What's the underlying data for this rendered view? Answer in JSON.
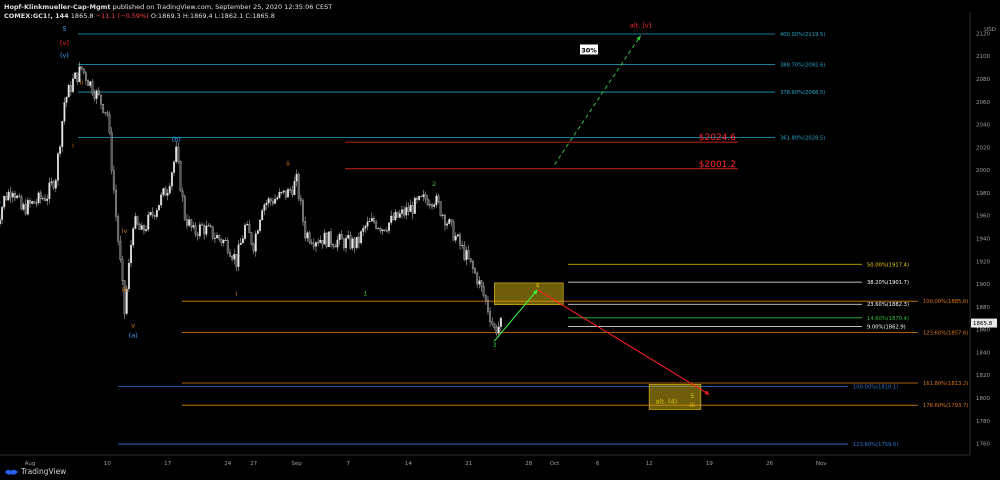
{
  "header": {
    "publisher": "Hopf-Klinkmueller-Cap-Mgmt",
    "published": "published on TradingView.com, September 25, 2020 12:35:06 CEST",
    "symbol": "COMEX:GC1!, 144",
    "last": "1865.8",
    "change": "−11.1 (−0.59%)",
    "o": "1869.3",
    "h": "1869.4",
    "l": "1862.1",
    "c": "1865.8"
  },
  "brand": "TradingView",
  "currency": "USD",
  "last_price_tag": "1865.8",
  "chart_data": {
    "type": "line",
    "title": "",
    "ylim": [
      1750,
      2130
    ],
    "y_ticks": [
      1760,
      1780,
      1800,
      1820,
      1840,
      1860,
      1880,
      1900,
      1920,
      1940,
      1960,
      1980,
      2000,
      2020,
      2040,
      2060,
      2080,
      2100,
      2120
    ],
    "x_ticks": [
      "Aug",
      "10",
      "17",
      "24",
      "27",
      "Sep",
      "7",
      "14",
      "21",
      "28",
      "Oct",
      "6",
      "12",
      "19",
      "26",
      "Nov"
    ],
    "price_path": [
      {
        "x": "Jul 28",
        "y": 1950
      },
      {
        "x": "Jul 29",
        "y": 1975
      },
      {
        "x": "Jul 30",
        "y": 1985
      },
      {
        "x": "Jul 31",
        "y": 1965
      },
      {
        "x": "Aug 3",
        "y": 1978
      },
      {
        "x": "Aug 4",
        "y": 1995
      },
      {
        "x": "Aug 5",
        "y": 2060
      },
      {
        "x": "Aug 6",
        "y": 2078
      },
      {
        "x": "Aug 7",
        "y": 2089
      },
      {
        "x": "Aug 10",
        "y": 2050
      },
      {
        "x": "Aug 11",
        "y": 1960
      },
      {
        "x": "Aug 12",
        "y": 1875
      },
      {
        "x": "Aug 13",
        "y": 1955
      },
      {
        "x": "Aug 14",
        "y": 1945
      },
      {
        "x": "Aug 17",
        "y": 1985
      },
      {
        "x": "Aug 18",
        "y": 2015
      },
      {
        "x": "Aug 19",
        "y": 1960
      },
      {
        "x": "Aug 20",
        "y": 1945
      },
      {
        "x": "Aug 21",
        "y": 1950
      },
      {
        "x": "Aug 24",
        "y": 1935
      },
      {
        "x": "Aug 25",
        "y": 1920
      },
      {
        "x": "Aug 26",
        "y": 1950
      },
      {
        "x": "Aug 27",
        "y": 1935
      },
      {
        "x": "Aug 28",
        "y": 1970
      },
      {
        "x": "Aug 31",
        "y": 1980
      },
      {
        "x": "Sep 1",
        "y": 1990
      },
      {
        "x": "Sep 2",
        "y": 1945
      },
      {
        "x": "Sep 3",
        "y": 1940
      },
      {
        "x": "Sep 4",
        "y": 1940
      },
      {
        "x": "Sep 8",
        "y": 1935
      },
      {
        "x": "Sep 9",
        "y": 1950
      },
      {
        "x": "Sep 10",
        "y": 1955
      },
      {
        "x": "Sep 11",
        "y": 1950
      },
      {
        "x": "Sep 14",
        "y": 1965
      },
      {
        "x": "Sep 15",
        "y": 1970
      },
      {
        "x": "Sep 16",
        "y": 1975
      },
      {
        "x": "Sep 17",
        "y": 1975
      },
      {
        "x": "Sep 18",
        "y": 1962
      },
      {
        "x": "Sep 21",
        "y": 1920
      },
      {
        "x": "Sep 22",
        "y": 1905
      },
      {
        "x": "Sep 23",
        "y": 1885
      },
      {
        "x": "Sep 24",
        "y": 1860
      },
      {
        "x": "Sep 25",
        "y": 1865.8
      }
    ],
    "price_levels": [
      {
        "label": "400.00%(2119.5)",
        "value": 2119.5,
        "color": "#26a7c9"
      },
      {
        "label": "388.70%(2092.6)",
        "value": 2092.6,
        "color": "#26a7c9"
      },
      {
        "label": "378.60%(2068.5)",
        "value": 2068.5,
        "color": "#26a7c9"
      },
      {
        "label": "361.80%(2028.5)",
        "value": 2028.5,
        "color": "#26a7c9"
      },
      {
        "label": "$2024.6",
        "value": 2024.6,
        "color": "#ff2a2a"
      },
      {
        "label": "$2001.2",
        "value": 2001.2,
        "color": "#ff2a2a"
      },
      {
        "label": "50.00%(1917.4)",
        "value": 1917.4,
        "color": "#f0d000"
      },
      {
        "label": "38.20%(1901.7)",
        "value": 1901.7,
        "color": "#ffffff"
      },
      {
        "label": "100.00%(1885.0)",
        "value": 1885.0,
        "color": "#e07a10"
      },
      {
        "label": "23.60%(1882.3)",
        "value": 1882.3,
        "color": "#ffffff"
      },
      {
        "label": "14.60%(1870.4)",
        "value": 1870.4,
        "color": "#2ec03a"
      },
      {
        "label": "9.00%(1862.9)",
        "value": 1862.9,
        "color": "#ffffff"
      },
      {
        "label": "123.60%(1857.6)",
        "value": 1857.6,
        "color": "#e07a10"
      },
      {
        "label": "161.80%(1813.2)",
        "value": 1813.2,
        "color": "#e07a10"
      },
      {
        "label": "100.00%(1810.1)",
        "value": 1810.1,
        "color": "#2a7bd8"
      },
      {
        "label": "178.60%(1793.7)",
        "value": 1793.7,
        "color": "#e07a10"
      },
      {
        "label": "123.60%(1759.6)",
        "value": 1759.6,
        "color": "#2a7bd8"
      }
    ],
    "zones": [
      {
        "name": "target-zone-4",
        "from": "Sep 24",
        "to": "Oct 2",
        "y1": 1882,
        "y2": 1901
      },
      {
        "name": "target-zone-5",
        "from": "Oct 12",
        "to": "Oct 18",
        "y1": 1790,
        "y2": 1812
      }
    ],
    "projections": [
      {
        "name": "wave-4-projection",
        "color": "#3cff3c",
        "from": {
          "x": "Sep 24",
          "y": 1850
        },
        "to": {
          "x": "Sep 29",
          "y": 1895
        }
      },
      {
        "name": "wave-5-projection",
        "color": "#ff2222",
        "from": {
          "x": "Sep 29",
          "y": 1895
        },
        "to": {
          "x": "Oct 19",
          "y": 1803
        }
      },
      {
        "name": "alt-v-projection",
        "color": "#2ec03a",
        "from": {
          "x": "Oct 1",
          "y": 2005
        },
        "to": {
          "x": "Oct 11",
          "y": 2118
        }
      }
    ],
    "wave_labels": [
      {
        "text": "5",
        "x": "Aug 5",
        "y": 2122,
        "color": "#38a8ff"
      },
      {
        "text": "[v]",
        "x": "Aug 5",
        "y": 2110,
        "color": "#ff2a2a"
      },
      {
        "text": "(v)",
        "x": "Aug 5",
        "y": 2099,
        "color": "#38a8ff"
      },
      {
        "text": "ii",
        "x": "Aug 7",
        "y": 2075,
        "color": "#e07a10"
      },
      {
        "text": "i",
        "x": "Aug 6",
        "y": 2020,
        "color": "#e07a10"
      },
      {
        "text": "(III)",
        "x": "Jul 27",
        "y": 2018,
        "color": "#38a8ff"
      },
      {
        "text": "v",
        "x": "Jul 27",
        "y": 2010,
        "color": "#e07a10"
      },
      {
        "text": "iii",
        "x": "Jul 23",
        "y": 2001,
        "color": "#e07a10"
      },
      {
        "text": "5",
        "x": "Jul 23",
        "y": 1992,
        "color": "#2ec03a"
      },
      {
        "text": "(iv)",
        "x": "Jul 28",
        "y": 1970,
        "color": "#38a8ff"
      },
      {
        "text": "iv",
        "x": "Jul 25",
        "y": 1945,
        "color": "#e07a10"
      },
      {
        "text": "iv",
        "x": "Aug 12",
        "y": 1945,
        "color": "#e07a10"
      },
      {
        "text": "iii",
        "x": "Aug 12",
        "y": 1893,
        "color": "#e07a10"
      },
      {
        "text": "v",
        "x": "Aug 13",
        "y": 1862,
        "color": "#e07a10"
      },
      {
        "text": "(a)",
        "x": "Aug 13",
        "y": 1853,
        "color": "#38a8ff"
      },
      {
        "text": "(b)",
        "x": "Aug 18",
        "y": 2025,
        "color": "#38a8ff"
      },
      {
        "text": "ii",
        "x": "Aug 31",
        "y": 2004,
        "color": "#e07a10"
      },
      {
        "text": "i",
        "x": "Aug 25",
        "y": 1890,
        "color": "#e07a10"
      },
      {
        "text": "2",
        "x": "Sep 17",
        "y": 1986,
        "color": "#2ec03a"
      },
      {
        "text": "1",
        "x": "Sep 9",
        "y": 1890,
        "color": "#2ec03a"
      },
      {
        "text": "3",
        "x": "Sep 24",
        "y": 1845,
        "color": "#2ec03a"
      },
      {
        "text": "4",
        "x": "Sep 29",
        "y": 1897,
        "color": "#e0c800"
      },
      {
        "text": "alt. [v]",
        "x": "Oct 11",
        "y": 2125,
        "color": "#ff2a2a"
      },
      {
        "text": "30%",
        "x": "Oct 5",
        "y": 2105,
        "color": "#ffffff"
      },
      {
        "text": "alt. (4)",
        "x": "Oct 14",
        "y": 1795,
        "color": "#e0c800"
      },
      {
        "text": "5",
        "x": "Oct 17",
        "y": 1800,
        "color": "#e0c800"
      },
      {
        "text": "iii",
        "x": "Oct 17",
        "y": 1792,
        "color": "#e0c800"
      }
    ],
    "grid": false
  }
}
